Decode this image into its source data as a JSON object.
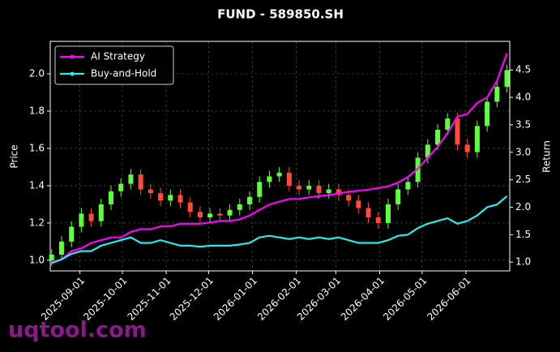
{
  "chart_data": {
    "type": "candlestick",
    "title": "FUND - 589850.SH",
    "y_label": "Price",
    "y2_label": "Return",
    "watermark": "uqtool.com",
    "up_color": "#5cff3a",
    "down_color": "#ff4a3a",
    "x": [
      "2025-08-12",
      "2025-08-19",
      "2025-08-26",
      "2025-09-02",
      "2025-09-09",
      "2025-09-16",
      "2025-09-23",
      "2025-09-30",
      "2025-10-07",
      "2025-10-14",
      "2025-10-21",
      "2025-10-28",
      "2025-11-04",
      "2025-11-11",
      "2025-11-18",
      "2025-11-25",
      "2025-12-02",
      "2025-12-09",
      "2025-12-16",
      "2025-12-23",
      "2025-12-30",
      "2026-01-06",
      "2026-01-13",
      "2026-01-20",
      "2026-01-27",
      "2026-02-03",
      "2026-02-10",
      "2026-02-17",
      "2026-02-24",
      "2026-03-03",
      "2026-03-10",
      "2026-03-17",
      "2026-03-24",
      "2026-03-31",
      "2026-04-07",
      "2026-04-14",
      "2026-04-21",
      "2026-04-28",
      "2026-05-05",
      "2026-05-12",
      "2026-05-19",
      "2026-05-26",
      "2026-06-02",
      "2026-06-09",
      "2026-06-16",
      "2026-06-23",
      "2026-06-30"
    ],
    "open": [
      1.0,
      1.03,
      1.1,
      1.18,
      1.25,
      1.21,
      1.3,
      1.37,
      1.41,
      1.46,
      1.38,
      1.36,
      1.32,
      1.35,
      1.31,
      1.26,
      1.23,
      1.25,
      1.24,
      1.27,
      1.3,
      1.34,
      1.42,
      1.45,
      1.47,
      1.4,
      1.38,
      1.4,
      1.36,
      1.38,
      1.35,
      1.32,
      1.28,
      1.23,
      1.2,
      1.3,
      1.38,
      1.42,
      1.55,
      1.62,
      1.7,
      1.76,
      1.62,
      1.58,
      1.72,
      1.85,
      1.93
    ],
    "high": [
      1.06,
      1.13,
      1.21,
      1.28,
      1.28,
      1.33,
      1.4,
      1.44,
      1.49,
      1.49,
      1.41,
      1.39,
      1.38,
      1.38,
      1.34,
      1.29,
      1.28,
      1.28,
      1.3,
      1.33,
      1.37,
      1.45,
      1.48,
      1.5,
      1.5,
      1.43,
      1.43,
      1.43,
      1.41,
      1.41,
      1.38,
      1.35,
      1.31,
      1.26,
      1.33,
      1.41,
      1.45,
      1.58,
      1.65,
      1.73,
      1.79,
      1.79,
      1.65,
      1.75,
      1.88,
      1.96,
      2.05
    ],
    "low": [
      0.97,
      1.0,
      1.07,
      1.15,
      1.18,
      1.18,
      1.27,
      1.34,
      1.38,
      1.35,
      1.33,
      1.29,
      1.29,
      1.28,
      1.23,
      1.2,
      1.2,
      1.21,
      1.21,
      1.24,
      1.27,
      1.31,
      1.39,
      1.42,
      1.37,
      1.35,
      1.35,
      1.33,
      1.33,
      1.32,
      1.29,
      1.25,
      1.2,
      1.17,
      1.17,
      1.27,
      1.35,
      1.39,
      1.52,
      1.59,
      1.67,
      1.59,
      1.55,
      1.55,
      1.69,
      1.82,
      1.9
    ],
    "close": [
      1.03,
      1.1,
      1.18,
      1.25,
      1.21,
      1.3,
      1.37,
      1.41,
      1.46,
      1.38,
      1.36,
      1.32,
      1.35,
      1.31,
      1.26,
      1.23,
      1.25,
      1.24,
      1.27,
      1.3,
      1.34,
      1.42,
      1.45,
      1.47,
      1.4,
      1.38,
      1.4,
      1.36,
      1.38,
      1.35,
      1.32,
      1.28,
      1.23,
      1.2,
      1.3,
      1.38,
      1.42,
      1.55,
      1.62,
      1.7,
      1.76,
      1.62,
      1.58,
      1.72,
      1.85,
      1.93,
      2.02
    ],
    "series": [
      {
        "name": "AI Strategy",
        "color": "#ff00ff",
        "axis": "y2",
        "values": [
          1.0,
          1.05,
          1.2,
          1.25,
          1.35,
          1.4,
          1.45,
          1.45,
          1.55,
          1.6,
          1.6,
          1.65,
          1.65,
          1.7,
          1.7,
          1.7,
          1.72,
          1.75,
          1.75,
          1.78,
          1.85,
          1.95,
          2.05,
          2.1,
          2.15,
          2.15,
          2.18,
          2.2,
          2.22,
          2.25,
          2.28,
          2.3,
          2.32,
          2.35,
          2.38,
          2.45,
          2.55,
          2.7,
          2.9,
          3.1,
          3.35,
          3.65,
          3.7,
          3.9,
          4.0,
          4.3,
          4.8
        ]
      },
      {
        "name": "Buy-and-Hold",
        "color": "#22eeee",
        "axis": "y2",
        "values": [
          0.98,
          1.05,
          1.15,
          1.2,
          1.2,
          1.3,
          1.35,
          1.4,
          1.45,
          1.35,
          1.35,
          1.4,
          1.35,
          1.3,
          1.3,
          1.28,
          1.3,
          1.3,
          1.3,
          1.32,
          1.35,
          1.45,
          1.48,
          1.45,
          1.42,
          1.45,
          1.42,
          1.45,
          1.42,
          1.45,
          1.4,
          1.35,
          1.35,
          1.35,
          1.4,
          1.48,
          1.5,
          1.62,
          1.7,
          1.75,
          1.8,
          1.7,
          1.75,
          1.85,
          2.0,
          2.05,
          2.2
        ]
      }
    ],
    "xlim": [
      "2025-08-11",
      "2026-07-02"
    ],
    "xticks": [
      "2025-09-01",
      "2025-10-01",
      "2025-11-01",
      "2025-12-01",
      "2026-01-01",
      "2026-02-01",
      "2026-03-01",
      "2026-04-01",
      "2026-05-01",
      "2026-06-01"
    ],
    "ylim": [
      0.943,
      2.174
    ],
    "yticks": [
      {
        "value": 1,
        "label": "1.0"
      },
      1.2,
      1.4,
      1.6,
      1.8,
      {
        "value": 2,
        "label": "2.0"
      }
    ],
    "y2lim": [
      0.84,
      5.02
    ],
    "y2ticks": [
      {
        "value": 1,
        "label": "1.0"
      },
      1.5,
      {
        "value": 2,
        "label": "2.0"
      },
      2.5,
      {
        "value": 3,
        "label": "3.0"
      },
      3.5,
      {
        "value": 4,
        "label": "4.0"
      },
      4.5
    ],
    "grid": true,
    "legend": "upper left"
  }
}
